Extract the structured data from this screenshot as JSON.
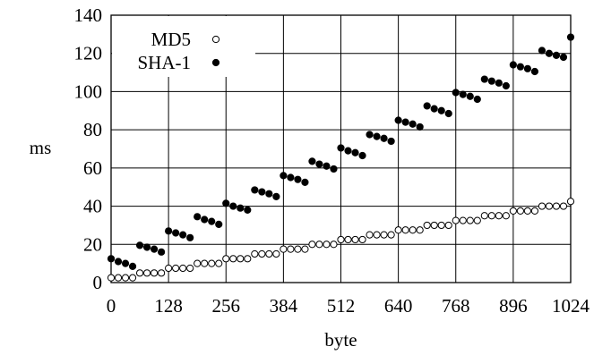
{
  "chart_data": {
    "type": "scatter",
    "xlabel": "byte",
    "ylabel": "ms",
    "xlim": [
      0,
      1024
    ],
    "ylim": [
      0,
      140
    ],
    "xticks": [
      0,
      128,
      256,
      384,
      512,
      640,
      768,
      896,
      1024
    ],
    "yticks": [
      0,
      20,
      40,
      60,
      80,
      100,
      120,
      140
    ],
    "grid": true,
    "legend": "top-left",
    "series": [
      {
        "name": "MD5",
        "marker": "open-circle",
        "x": [
          0,
          16,
          32,
          48,
          64,
          80,
          96,
          112,
          128,
          144,
          160,
          176,
          192,
          208,
          224,
          240,
          256,
          272,
          288,
          304,
          320,
          336,
          352,
          368,
          384,
          400,
          416,
          432,
          448,
          464,
          480,
          496,
          512,
          528,
          544,
          560,
          576,
          592,
          608,
          624,
          640,
          656,
          672,
          688,
          704,
          720,
          736,
          752,
          768,
          784,
          800,
          816,
          832,
          848,
          864,
          880,
          896,
          912,
          928,
          944,
          960,
          976,
          992,
          1008,
          1024
        ],
        "y": [
          2.5,
          2.5,
          2.5,
          2.5,
          5,
          5,
          5,
          5,
          7.5,
          7.5,
          7.5,
          7.5,
          10,
          10,
          10,
          10,
          12.5,
          12.5,
          12.5,
          12.5,
          15,
          15,
          15,
          15,
          17.5,
          17.5,
          17.5,
          17.5,
          20,
          20,
          20,
          20,
          22.5,
          22.5,
          22.5,
          22.5,
          25,
          25,
          25,
          25,
          27.5,
          27.5,
          27.5,
          27.5,
          30,
          30,
          30,
          30,
          32.5,
          32.5,
          32.5,
          32.5,
          35,
          35,
          35,
          35,
          37.5,
          37.5,
          37.5,
          37.5,
          40,
          40,
          40,
          40,
          42.5
        ]
      },
      {
        "name": "SHA-1",
        "marker": "filled-circle",
        "x": [
          0,
          16,
          32,
          48,
          64,
          80,
          96,
          112,
          128,
          144,
          160,
          176,
          192,
          208,
          224,
          240,
          256,
          272,
          288,
          304,
          320,
          336,
          352,
          368,
          384,
          400,
          416,
          432,
          448,
          464,
          480,
          496,
          512,
          528,
          544,
          560,
          576,
          592,
          608,
          624,
          640,
          656,
          672,
          688,
          704,
          720,
          736,
          752,
          768,
          784,
          800,
          816,
          832,
          848,
          864,
          880,
          896,
          912,
          928,
          944,
          960,
          976,
          992,
          1008,
          1024
        ],
        "y": [
          12.5,
          11,
          10,
          8.5,
          19.5,
          18.5,
          17.5,
          16,
          27,
          26,
          25,
          23.5,
          34.5,
          33,
          32,
          30.5,
          41.5,
          40,
          39,
          38,
          48.5,
          47.5,
          46.5,
          45,
          56,
          55,
          54,
          52.5,
          63.5,
          62,
          61,
          59.5,
          70.5,
          69,
          68,
          66.5,
          77.5,
          76.5,
          75.5,
          74,
          85,
          84,
          83,
          81.5,
          92.5,
          91,
          90,
          88.5,
          99.5,
          98.5,
          97.5,
          96,
          106.5,
          105.5,
          104.5,
          103,
          114,
          113,
          112,
          110.5,
          121.5,
          120,
          119,
          118,
          128.5
        ]
      }
    ]
  }
}
